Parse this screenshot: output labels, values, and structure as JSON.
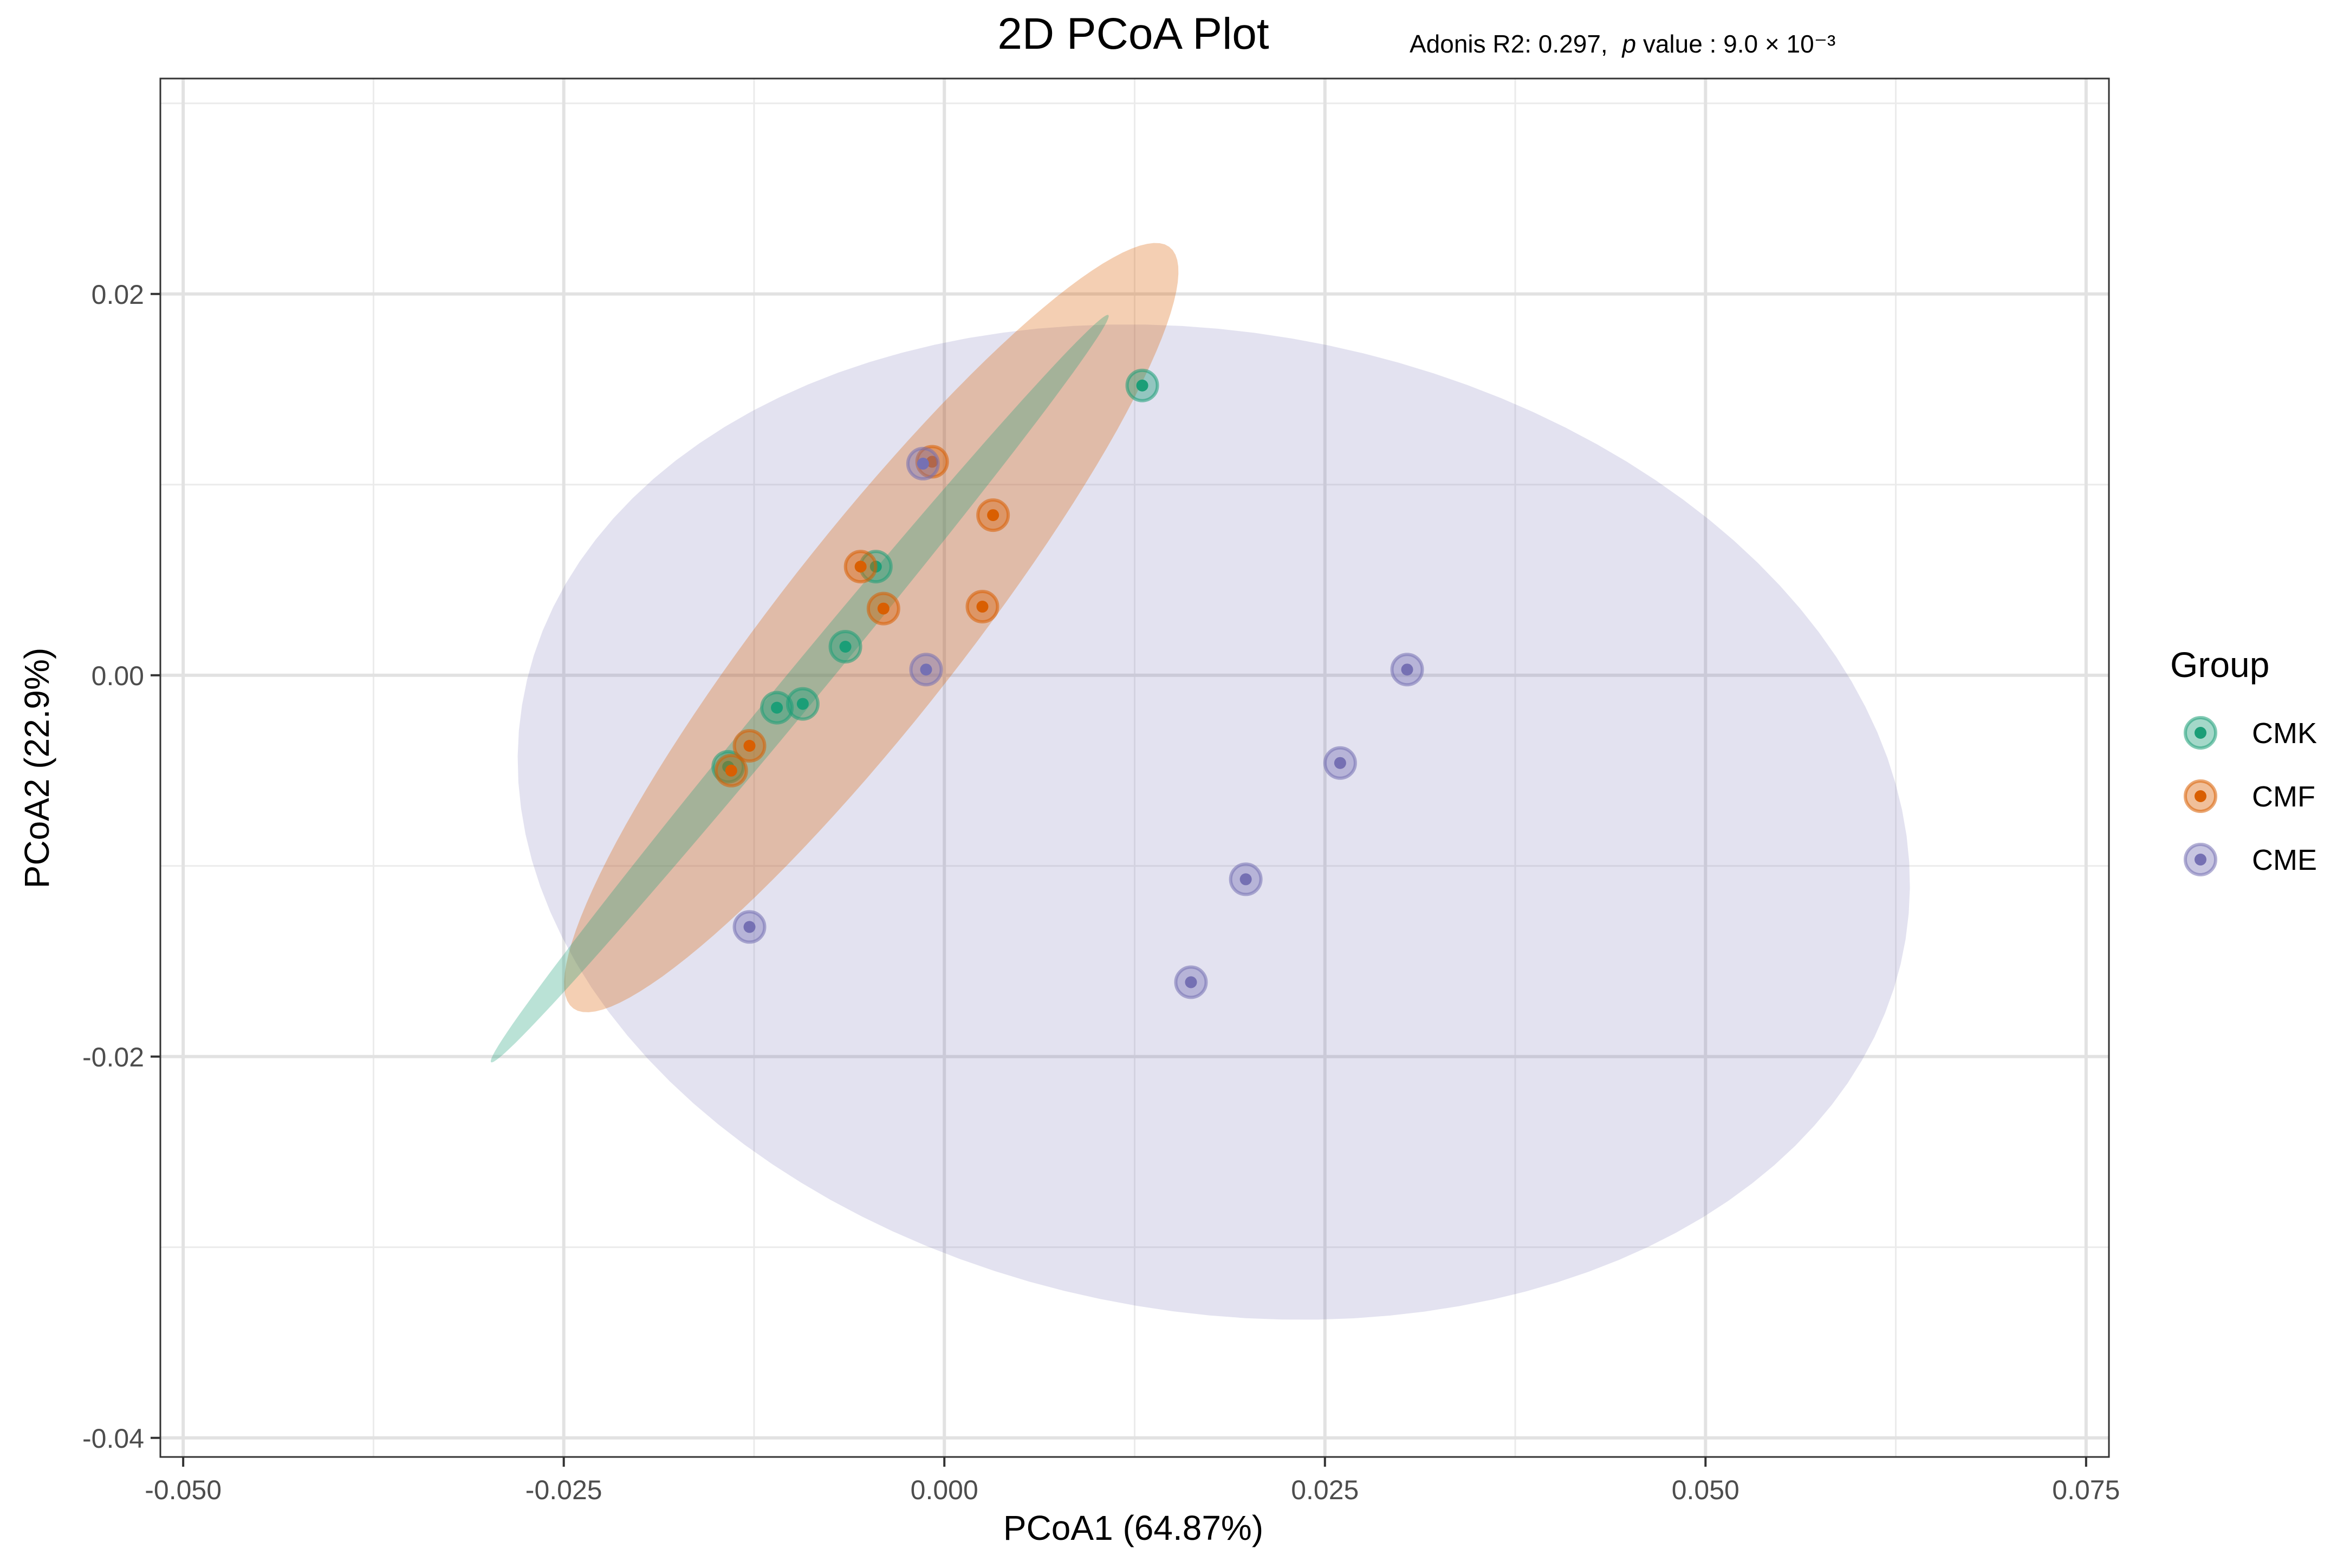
{
  "chart_data": {
    "type": "scatter",
    "title": "2D PCoA Plot",
    "subtitle": {
      "lead": "Adonis R2: 0.297,",
      "p_italic": "p",
      "p_rest": " value : 9.0 × 10⁻³"
    },
    "xlabel": "PCoA1 (64.87%)",
    "ylabel": "PCoA2 (22.9%)",
    "xlim": [
      -0.0515,
      0.0765
    ],
    "ylim": [
      -0.041,
      0.0313
    ],
    "xticks": [
      -0.05,
      -0.025,
      0.0,
      0.025,
      0.05,
      0.075
    ],
    "xtick_labels": [
      "-0.050",
      "-0.025",
      "0.000",
      "0.025",
      "0.050",
      "0.075"
    ],
    "yticks": [
      -0.04,
      -0.02,
      0.0,
      0.02
    ],
    "ytick_labels": [
      "-0.04",
      "-0.02",
      "0.00",
      "0.02"
    ],
    "grid": true,
    "legend": {
      "title": "Group",
      "position": "right"
    },
    "series": [
      {
        "name": "CMK",
        "color": "#1b9e77",
        "ellipse": {
          "cx": -0.0095,
          "cy": -0.0007,
          "rx": 0.0282,
          "ry": 0.0011,
          "angle_deg": 44
        },
        "points": [
          {
            "x": 0.013,
            "y": 0.0152
          },
          {
            "x": -0.0045,
            "y": 0.0057
          },
          {
            "x": -0.0065,
            "y": 0.0015
          },
          {
            "x": -0.011,
            "y": -0.0017
          },
          {
            "x": -0.0093,
            "y": -0.0015
          },
          {
            "x": -0.0142,
            "y": -0.0048
          }
        ]
      },
      {
        "name": "CMF",
        "color": "#d95f02",
        "ellipse": {
          "cx": -0.0048,
          "cy": 0.0025,
          "rx": 0.028,
          "ry": 0.0055,
          "angle_deg": 45
        },
        "points": [
          {
            "x": -0.0008,
            "y": 0.0112
          },
          {
            "x": 0.0032,
            "y": 0.0084
          },
          {
            "x": -0.0055,
            "y": 0.0057
          },
          {
            "x": -0.004,
            "y": 0.0035
          },
          {
            "x": 0.0025,
            "y": 0.0036
          },
          {
            "x": -0.0128,
            "y": -0.0037
          },
          {
            "x": -0.014,
            "y": -0.005
          }
        ]
      },
      {
        "name": "CME",
        "color": "#7570b3",
        "ellipse": {
          "cx": 0.0177,
          "cy": -0.0077,
          "rx": 0.0459,
          "ry": 0.0258,
          "angle_deg": -6
        },
        "points": [
          {
            "x": -0.0014,
            "y": 0.0111
          },
          {
            "x": -0.0012,
            "y": 0.0003
          },
          {
            "x": 0.0304,
            "y": 0.0003
          },
          {
            "x": 0.026,
            "y": -0.0046
          },
          {
            "x": 0.0198,
            "y": -0.0107
          },
          {
            "x": 0.0162,
            "y": -0.0161
          },
          {
            "x": -0.0128,
            "y": -0.0132
          }
        ]
      }
    ]
  }
}
